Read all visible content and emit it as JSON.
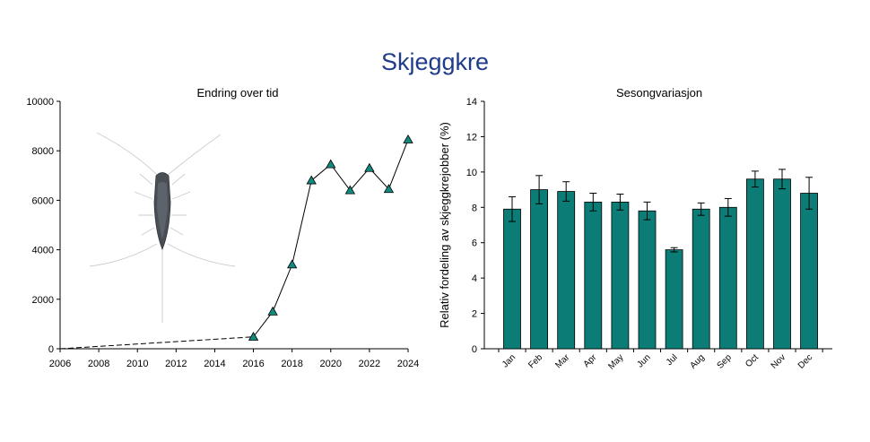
{
  "page": {
    "title": "Skjeggkre"
  },
  "colors": {
    "title": "#1f3c8c",
    "marker_fill": "#138a7f",
    "bar_fill": "#0b7d76",
    "axis": "#000000",
    "insect_body": "#4a4f56"
  },
  "illustration": {
    "name": "silverfish-illustration"
  },
  "chart_data": [
    {
      "type": "line",
      "title": "Endring over tid",
      "xlabel": "",
      "ylabel": "",
      "xlim": [
        2006,
        2024
      ],
      "ylim": [
        0,
        10000
      ],
      "xticks": [
        2006,
        2008,
        2010,
        2012,
        2014,
        2016,
        2018,
        2020,
        2022,
        2024
      ],
      "yticks": [
        0,
        2000,
        4000,
        6000,
        8000,
        10000
      ],
      "dashed_segment": [
        {
          "x": 2006,
          "y": 0
        },
        {
          "x": 2016,
          "y": 480
        }
      ],
      "series": [
        {
          "marker": "triangle",
          "points": [
            {
              "x": 2016,
              "y": 480
            },
            {
              "x": 2017,
              "y": 1500
            },
            {
              "x": 2018,
              "y": 3400
            },
            {
              "x": 2019,
              "y": 6800
            },
            {
              "x": 2020,
              "y": 7450
            },
            {
              "x": 2021,
              "y": 6400
            },
            {
              "x": 2022,
              "y": 7300
            },
            {
              "x": 2023,
              "y": 6450
            },
            {
              "x": 2024,
              "y": 8450
            }
          ]
        }
      ],
      "grid": false
    },
    {
      "type": "bar",
      "title": "Sesongvariasjon",
      "xlabel": "",
      "ylabel": "Relativ fordeling av skjeggkrejobber (%)",
      "ylim": [
        0,
        14
      ],
      "yticks": [
        0,
        2,
        4,
        6,
        8,
        10,
        12,
        14
      ],
      "categories": [
        "Jan",
        "Feb",
        "Mar",
        "Apr",
        "May",
        "Jun",
        "Jul",
        "Aug",
        "Sep",
        "Oct",
        "Nov",
        "Dec"
      ],
      "values": [
        7.9,
        9.0,
        8.9,
        8.3,
        8.3,
        7.8,
        5.6,
        7.9,
        8.0,
        9.6,
        9.6,
        8.8
      ],
      "errors": [
        0.7,
        0.8,
        0.55,
        0.5,
        0.45,
        0.5,
        0.12,
        0.35,
        0.5,
        0.45,
        0.55,
        0.9
      ],
      "grid": false
    }
  ]
}
